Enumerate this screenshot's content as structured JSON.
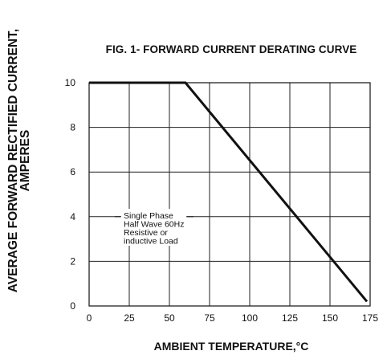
{
  "chart_data": {
    "type": "line",
    "title": "FIG. 1- FORWARD CURRENT DERATING CURVE",
    "xlabel": "AMBIENT TEMPERATURE,°C",
    "ylabel_line1": "AVERAGE FORWARD RECTIFIED CURRENT,",
    "ylabel_line2": "AMPERES",
    "xlim": [
      0,
      175
    ],
    "ylim": [
      0,
      10
    ],
    "x_ticks": [
      0,
      25,
      50,
      75,
      100,
      125,
      150,
      175
    ],
    "y_ticks": [
      0,
      2,
      4,
      6,
      8,
      10
    ],
    "grid": true,
    "series": [
      {
        "x": [
          0,
          60,
          173
        ],
        "y": [
          10,
          10,
          0.2
        ]
      }
    ],
    "annotation_lines": [
      "Single Phase",
      "Half Wave 60Hz",
      "Resistive or",
      "inductive Load"
    ]
  }
}
